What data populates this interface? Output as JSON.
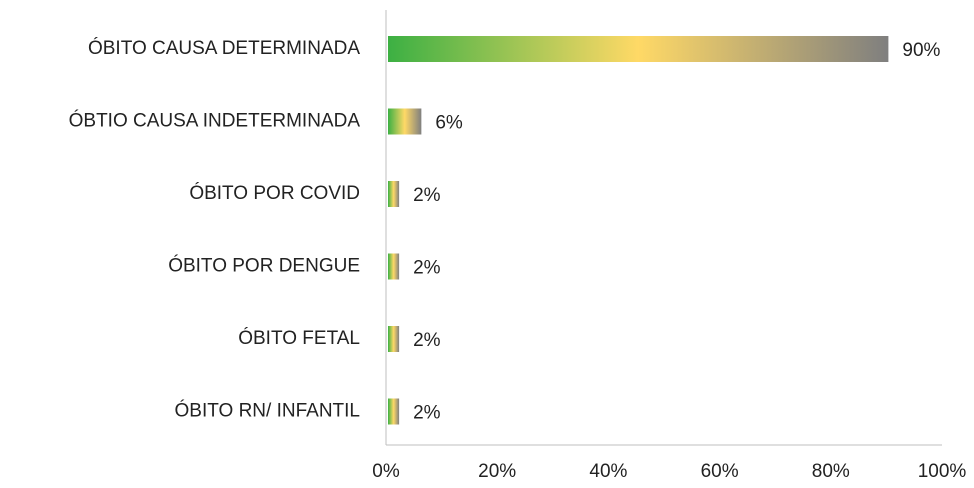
{
  "chart_data": {
    "type": "hbar",
    "categories": [
      "ÓBITO CAUSA DETERMINADA",
      "ÓBTIO CAUSA INDETERMINADA",
      "ÓBITO POR COVID",
      "ÓBITO POR DENGUE",
      "ÓBITO FETAL",
      "ÓBITO RN/ INFANTIL"
    ],
    "values": [
      90,
      6,
      2,
      2,
      2,
      2
    ],
    "value_labels": [
      "90%",
      "6%",
      "2%",
      "2%",
      "2%",
      "2%"
    ],
    "gradient": [
      "#3cb043",
      "#ffd966",
      "#7f7f7f"
    ],
    "xlim": [
      0,
      100
    ],
    "xticks": [
      {
        "value": 0,
        "label": "0%"
      },
      {
        "value": 20,
        "label": "20%"
      },
      {
        "value": 40,
        "label": "40%"
      },
      {
        "value": 60,
        "label": "60%"
      },
      {
        "value": 80,
        "label": "80%"
      },
      {
        "value": 100,
        "label": "100%"
      }
    ],
    "grid": false
  }
}
